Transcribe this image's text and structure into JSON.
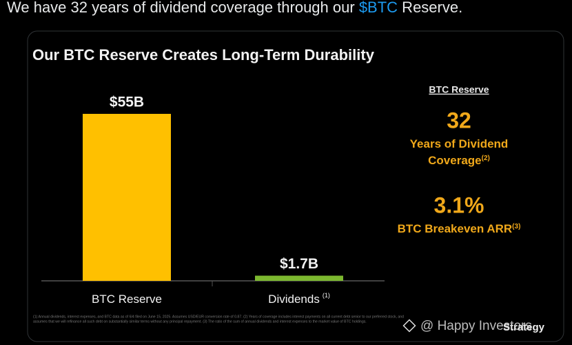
{
  "tweet": {
    "text_parts": [
      "We have 32 years of dividend coverage through our ",
      "$BTC",
      " Reserve."
    ]
  },
  "chart_data": {
    "type": "bar",
    "title": "Our BTC Reserve Creates Long-Term Durability",
    "categories": [
      "BTC Reserve",
      "Dividends"
    ],
    "category_notes": [
      null,
      "(1)"
    ],
    "values": [
      55,
      1.7
    ],
    "value_labels": [
      "$55B",
      "$1.7B"
    ],
    "colors": [
      "#FFC000",
      "#7CB82F"
    ]
  },
  "side_panel": {
    "heading": "BTC Reserve",
    "stats": [
      {
        "value": "32",
        "label_lines": [
          "Years of Dividend",
          "Coverage"
        ],
        "note": "(2)"
      },
      {
        "value": "3.1%",
        "label_lines": [
          "BTC Breakeven ARR"
        ],
        "note": "(3)"
      }
    ]
  },
  "footnotes": [
    "(1) Annual dividends, interest expenses, and BTC data as of 6/4 filed on June 15, 2025. Assumes USD/EUR conversion rate of 0.87. (2) Years of coverage includes interest payments on all current debt senior to our preferred stock, and",
    "assumes that we will refinance all such debt on substantially similar terms without any principal repayment. (3) The ratio of the sum of annual dividends and interest expenses to the market value of BTC holdings."
  ],
  "watermark": "@ Happy Investors",
  "logo": "Strategy"
}
